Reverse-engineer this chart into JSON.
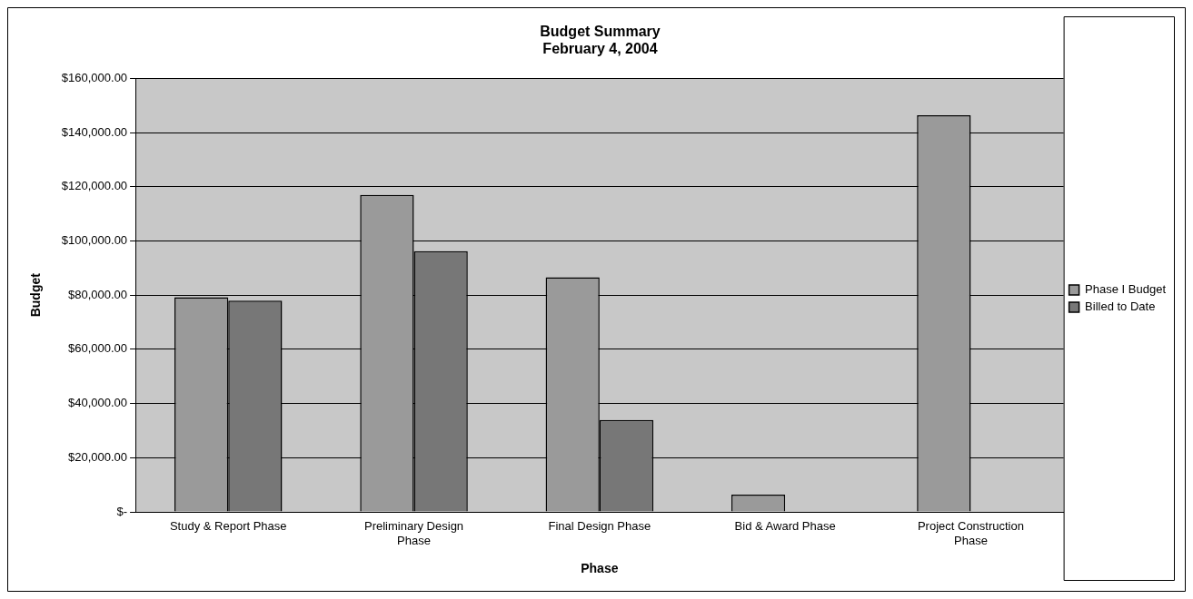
{
  "chart_data": {
    "type": "bar",
    "title": "Budget Summary",
    "subtitle": "February 4, 2004",
    "xlabel": "Phase",
    "ylabel": "Budget",
    "categories": [
      "Study & Report Phase",
      "Preliminary Design Phase",
      "Final Design Phase",
      "Bid & Award Phase",
      "Project Construction Phase"
    ],
    "series": [
      {
        "name": "Phase I Budget",
        "color": "#9a9a9a",
        "values": [
          79200,
          117000,
          86600,
          6400,
          146400
        ]
      },
      {
        "name": "Billed to Date",
        "color": "#777777",
        "values": [
          78000,
          96200,
          33900,
          null,
          null
        ]
      }
    ],
    "ylim": [
      0,
      160000
    ],
    "yticks": [
      {
        "value": 0,
        "label": "$-"
      },
      {
        "value": 20000,
        "label": "$20,000.00"
      },
      {
        "value": 40000,
        "label": "$40,000.00"
      },
      {
        "value": 60000,
        "label": "$60,000.00"
      },
      {
        "value": 80000,
        "label": "$80,000.00"
      },
      {
        "value": 100000,
        "label": "$100,000.00"
      },
      {
        "value": 120000,
        "label": "$120,000.00"
      },
      {
        "value": 140000,
        "label": "$140,000.00"
      },
      {
        "value": 160000,
        "label": "$160,000.00"
      }
    ],
    "grid": "y",
    "legend": "right"
  }
}
